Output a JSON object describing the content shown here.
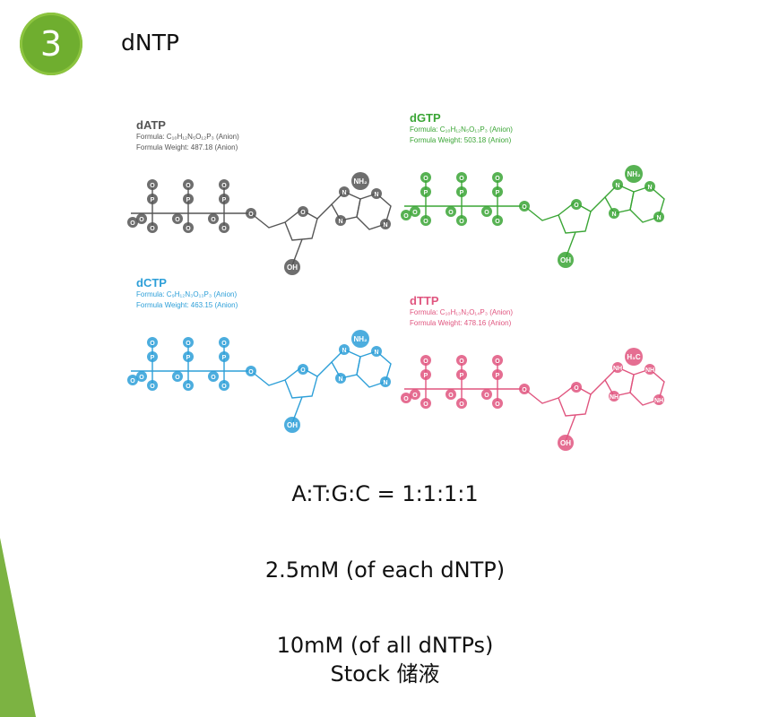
{
  "slide": {
    "number": "3",
    "title": "dNTP",
    "accent_color": "#6fae2f"
  },
  "molecules": [
    {
      "name": "dATP",
      "formula": "Formula: C₁₀H₁₂N₅O₁₂P₃ (Anion)",
      "weight": "Formula Weight: 487.18 (Anion)",
      "color": "#555555",
      "base_label": "NH₂",
      "oh_label": "OH",
      "o_label": "O",
      "p_label": "P",
      "n_label": "N"
    },
    {
      "name": "dGTP",
      "formula": "Formula: C₁₀H₁₂N₅O₁₃P₃ (Anion)",
      "weight": "Formula Weight: 503.18 (Anion)",
      "color": "#3aa535",
      "base_label": "NH₂",
      "oh_label": "OH",
      "o_label": "O",
      "p_label": "P",
      "n_label": "N"
    },
    {
      "name": "dCTP",
      "formula": "Formula: C₉H₁₂N₃O₁₃P₃ (Anion)",
      "weight": "Formula Weight: 463.15 (Anion)",
      "color": "#2d9fd8",
      "base_label": "NH₂",
      "oh_label": "OH",
      "o_label": "O",
      "p_label": "P",
      "n_label": "N"
    },
    {
      "name": "dTTP",
      "formula": "Formula: C₁₀H₁₃N₂O₁₄P₃ (Anion)",
      "weight": "Formula Weight: 478.16 (Anion)",
      "color": "#e0557f",
      "base_label": "H₃C",
      "oh_label": "OH",
      "o_label": "O",
      "p_label": "P",
      "n_label": "NH"
    }
  ],
  "ratio_text": "A:T:G:C = 1:1:1:1",
  "each_text": "2.5mM (of each dNTP)",
  "all_text": "10mM (of all dNTPs)",
  "stock_text": "Stock 储液"
}
